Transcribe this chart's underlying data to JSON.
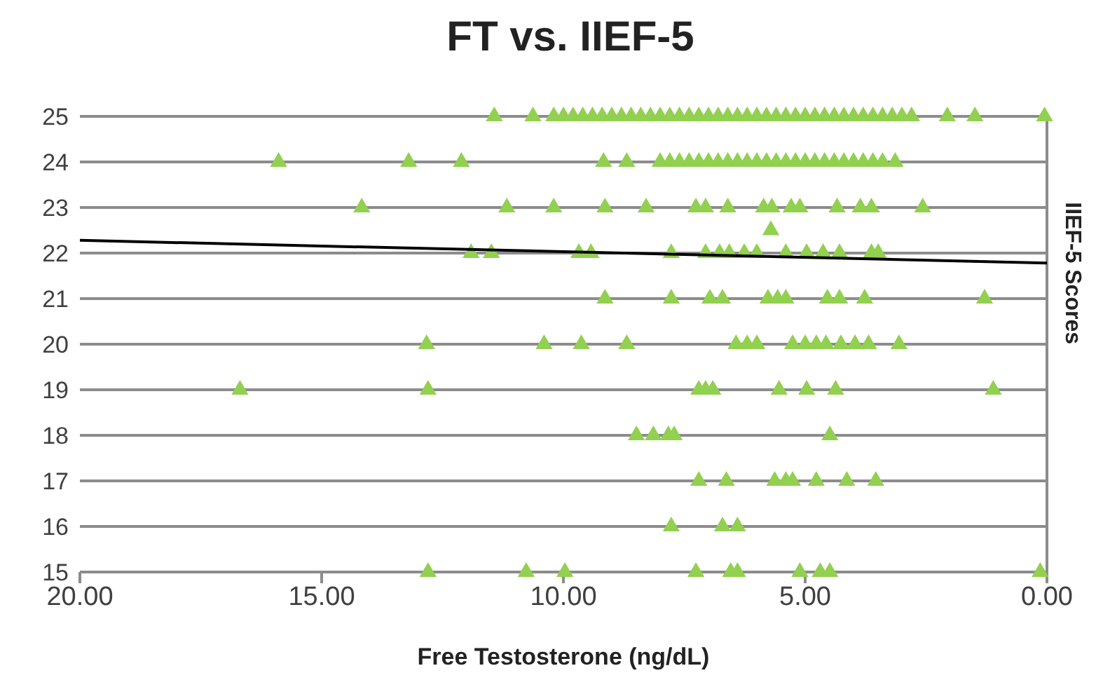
{
  "chart_data": {
    "type": "scatter",
    "title": "FT vs. IIEF-5",
    "xlabel": "Free Testosterone (ng/dL)",
    "ylabel": "IIEF-5 Scores",
    "xlim": [
      20,
      0
    ],
    "xticks": [
      {
        "value": 20,
        "label": "20.00"
      },
      {
        "value": 15,
        "label": "15.00"
      },
      {
        "value": 10,
        "label": "10.00"
      },
      {
        "value": 5,
        "label": "5.00"
      },
      {
        "value": 0,
        "label": "0.00"
      }
    ],
    "ylim": [
      15,
      25
    ],
    "yticks": [
      15,
      16,
      17,
      18,
      19,
      20,
      21,
      22,
      23,
      24,
      25
    ],
    "grid": "y",
    "marker": "triangle",
    "series": [
      {
        "type": "scatter",
        "color": "#92d050",
        "x": [
          11.43,
          10.63,
          10.2,
          10.0,
          9.8,
          9.6,
          9.4,
          9.2,
          9.0,
          8.8,
          8.6,
          8.4,
          8.2,
          8.0,
          7.8,
          7.6,
          7.4,
          7.2,
          7.0,
          6.8,
          6.6,
          6.4,
          6.2,
          6.0,
          5.8,
          5.6,
          5.4,
          5.2,
          5.0,
          4.8,
          4.6,
          4.4,
          4.2,
          4.0,
          3.8,
          3.6,
          3.4,
          3.2,
          3.0,
          2.8,
          2.06,
          1.49,
          0.05
        ],
        "values": [
          25,
          25,
          25,
          25,
          25,
          25,
          25,
          25,
          25,
          25,
          25,
          25,
          25,
          25,
          25,
          25,
          25,
          25,
          25,
          25,
          25,
          25,
          25,
          25,
          25,
          25,
          25,
          25,
          25,
          25,
          25,
          25,
          25,
          25,
          25,
          25,
          25,
          25,
          25,
          25,
          25,
          25,
          25
        ]
      },
      {
        "type": "scatter",
        "color": "#92d050",
        "x": [
          15.89,
          13.2,
          12.11,
          9.17,
          8.69,
          8.0,
          7.8,
          7.6,
          7.4,
          7.2,
          7.0,
          6.8,
          6.6,
          6.4,
          6.2,
          6.0,
          5.8,
          5.6,
          5.4,
          5.2,
          5.0,
          4.8,
          4.6,
          4.4,
          4.2,
          4.0,
          3.8,
          3.6,
          3.4,
          3.14
        ],
        "values": [
          24,
          24,
          24,
          24,
          24,
          24,
          24,
          24,
          24,
          24,
          24,
          24,
          24,
          24,
          24,
          24,
          24,
          24,
          24,
          24,
          24,
          24,
          24,
          24,
          24,
          24,
          24,
          24,
          24,
          24
        ]
      },
      {
        "type": "scatter",
        "color": "#92d050",
        "x": [
          14.17,
          11.17,
          10.2,
          9.14,
          8.29,
          7.26,
          7.06,
          6.6,
          5.86,
          5.69,
          5.29,
          5.11,
          4.34,
          3.86,
          3.63,
          2.57,
          5.71
        ],
        "values": [
          23,
          23,
          23,
          23,
          23,
          23,
          23,
          23,
          23,
          23,
          23,
          23,
          23,
          23,
          23,
          23,
          22.5
        ]
      },
      {
        "type": "scatter",
        "color": "#92d050",
        "x": [
          11.91,
          11.49,
          9.68,
          9.43,
          7.77,
          7.06,
          6.77,
          6.57,
          6.26,
          6.0,
          5.4,
          4.97,
          4.63,
          4.29,
          3.63,
          3.49
        ],
        "values": [
          22,
          22,
          22,
          22,
          22,
          22,
          22,
          22,
          22,
          22,
          22,
          22,
          22,
          22,
          22,
          22
        ]
      },
      {
        "type": "scatter",
        "color": "#92d050",
        "x": [
          9.14,
          7.77,
          6.97,
          6.71,
          5.77,
          5.57,
          5.4,
          4.54,
          4.29,
          3.77,
          1.29
        ],
        "values": [
          21,
          21,
          21,
          21,
          21,
          21,
          21,
          21,
          21,
          21,
          21
        ]
      },
      {
        "type": "scatter",
        "color": "#92d050",
        "x": [
          12.83,
          10.4,
          9.63,
          8.69,
          6.43,
          6.2,
          6.0,
          5.26,
          5.0,
          4.77,
          4.57,
          4.26,
          3.97,
          3.69,
          3.06
        ],
        "values": [
          20,
          20,
          20,
          20,
          20,
          20,
          20,
          20,
          20,
          20,
          20,
          20,
          20,
          20,
          20
        ]
      },
      {
        "type": "scatter",
        "color": "#92d050",
        "x": [
          16.69,
          12.8,
          7.2,
          7.06,
          6.91,
          5.54,
          4.97,
          4.37,
          1.11
        ],
        "values": [
          19,
          19,
          19,
          19,
          19,
          19,
          19,
          19,
          19
        ]
      },
      {
        "type": "scatter",
        "color": "#92d050",
        "x": [
          8.49,
          8.14,
          7.83,
          7.71,
          4.49
        ],
        "values": [
          18,
          18,
          18,
          18,
          18
        ]
      },
      {
        "type": "scatter",
        "color": "#92d050",
        "x": [
          7.2,
          6.63,
          5.63,
          5.4,
          5.26,
          4.77,
          4.14,
          3.54
        ],
        "values": [
          17,
          17,
          17,
          17,
          17,
          17,
          17,
          17
        ]
      },
      {
        "type": "scatter",
        "color": "#92d050",
        "x": [
          7.77,
          6.71,
          6.4
        ],
        "values": [
          16,
          16,
          16
        ]
      },
      {
        "type": "scatter",
        "color": "#92d050",
        "x": [
          12.8,
          10.77,
          9.97,
          7.26,
          6.54,
          6.4,
          5.11,
          4.69,
          4.49,
          0.14
        ],
        "values": [
          15,
          15,
          15,
          15,
          15,
          15,
          15,
          15,
          15,
          15
        ]
      },
      {
        "type": "line",
        "color": "#000000",
        "x": [
          20,
          0
        ],
        "values": [
          22.28,
          21.78
        ],
        "marker": "none"
      }
    ]
  }
}
